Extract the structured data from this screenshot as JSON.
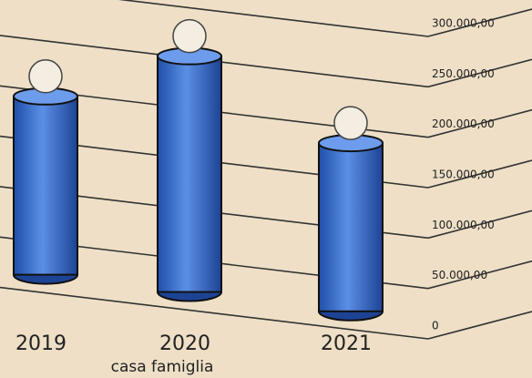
{
  "chart_data": {
    "type": "bar",
    "x_label": "casa famiglia",
    "categories": [
      "2019",
      "2020",
      "2021"
    ],
    "values": [
      195000,
      252000,
      185000
    ],
    "color": "#3b6fcc",
    "ylim": [
      0,
      300000
    ],
    "yticks": [
      0,
      {
        "value": 50000,
        "label": "50.000,00"
      },
      {
        "value": 100000,
        "label": "100.000,00"
      },
      {
        "value": 150000,
        "label": "150.000,00"
      },
      {
        "value": 200000,
        "label": "200.000,00"
      },
      {
        "value": 250000,
        "label": "250.000,00"
      },
      {
        "value": 300000,
        "label": "300.000,00"
      }
    ],
    "grid": true
  }
}
